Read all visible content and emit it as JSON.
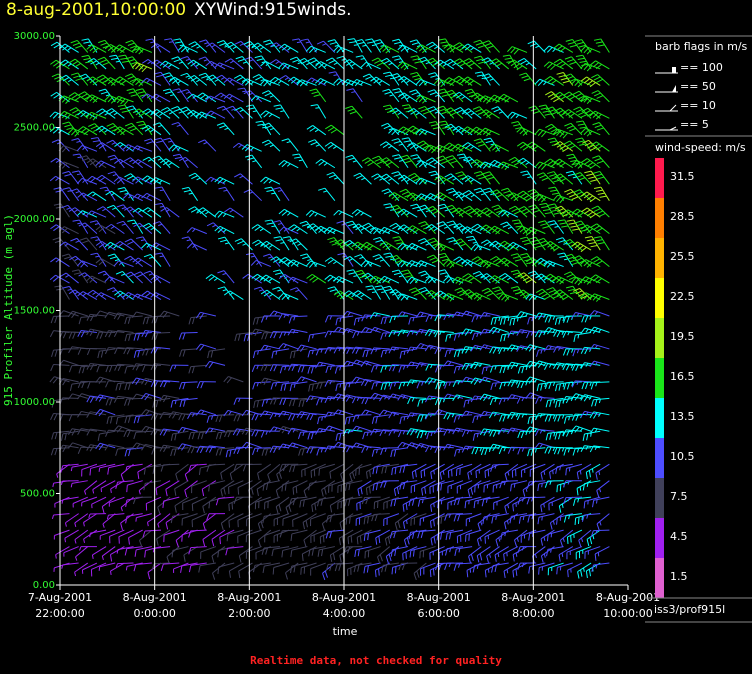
{
  "header": {
    "date": "8-aug-2001,10:00:00",
    "title": "XYWind:915winds."
  },
  "note": "Realtime data, not checked for quality",
  "chart_data": {
    "type": "wind-barb-time-height",
    "xlabel": "time",
    "ylabel": "915 Profiler Altitude (m agl)",
    "ylim": [
      0,
      3000
    ],
    "y_ticks": [
      "0.00",
      "500.00",
      "1000.00",
      "1500.00",
      "2000.00",
      "2500.00",
      "3000.00"
    ],
    "x_ticks": [
      {
        "line1": "7-Aug-2001",
        "line2": "22:00:00"
      },
      {
        "line1": "8-Aug-2001",
        "line2": "0:00:00"
      },
      {
        "line1": "8-Aug-2001",
        "line2": "2:00:00"
      },
      {
        "line1": "8-Aug-2001",
        "line2": "4:00:00"
      },
      {
        "line1": "8-Aug-2001",
        "line2": "6:00:00"
      },
      {
        "line1": "8-Aug-2001",
        "line2": "8:00:00"
      },
      {
        "line1": "8-Aug-2001",
        "line2": "10:00:00"
      }
    ],
    "x_range_hours": [
      -2,
      10
    ],
    "vertical_lines_hours": [
      0,
      2,
      4,
      6,
      8
    ],
    "barb_legend": {
      "title": "barb flags in m/s",
      "items": [
        "== 100",
        "== 50",
        "== 10",
        "== 5"
      ]
    },
    "speed_legend": {
      "title": "wind-speed: m/s",
      "bins": [
        {
          "label": "31.5",
          "color": "#ff1a4d"
        },
        {
          "label": "28.5",
          "color": "#ff7f00"
        },
        {
          "label": "25.5",
          "color": "#ffb300"
        },
        {
          "label": "22.5",
          "color": "#ffff00"
        },
        {
          "label": "19.5",
          "color": "#a6f21a"
        },
        {
          "label": "16.5",
          "color": "#1ae61a"
        },
        {
          "label": "13.5",
          "color": "#00ffff"
        },
        {
          "label": "10.5",
          "color": "#4d4dff"
        },
        {
          "label": "7.5",
          "color": "#40405a"
        },
        {
          "label": "4.5",
          "color": "#a020f0"
        },
        {
          "label": "1.5",
          "color": "#e060d0"
        }
      ]
    },
    "source": "iss3/prof915l"
  }
}
